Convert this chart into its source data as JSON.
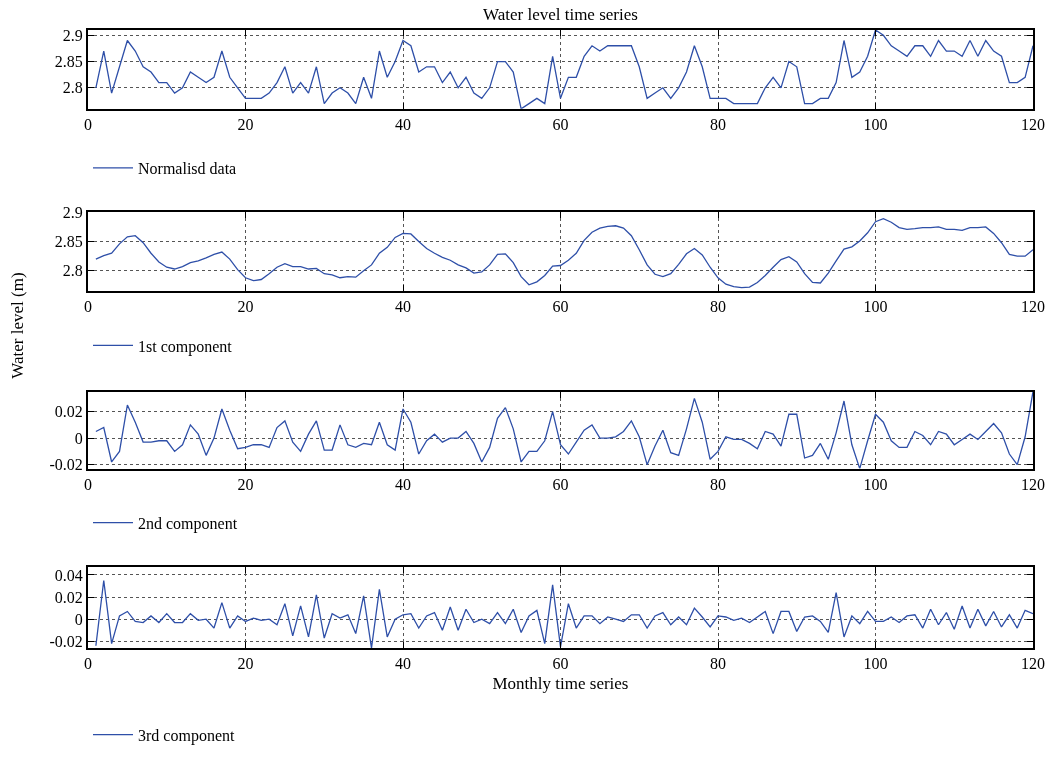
{
  "chart_data": [
    {
      "type": "line",
      "title": "Water level time series",
      "xlim": [
        0,
        120
      ],
      "xticks": [
        0,
        20,
        40,
        60,
        80,
        100,
        120
      ],
      "ylim": [
        2.76,
        2.91
      ],
      "yticks": [
        2.8,
        2.85,
        2.9
      ],
      "grid": true,
      "legend": "bottom",
      "line_style": "solid",
      "x": [
        1,
        2,
        3,
        4,
        5,
        6,
        7,
        8,
        9,
        10,
        11,
        12,
        13,
        14,
        15,
        16,
        17,
        18,
        19,
        20,
        21,
        22,
        23,
        24,
        25,
        26,
        27,
        28,
        29,
        30,
        31,
        32,
        33,
        34,
        35,
        36,
        37,
        38,
        39,
        40,
        41,
        42,
        43,
        44,
        45,
        46,
        47,
        48,
        49,
        50,
        51,
        52,
        53,
        54,
        55,
        56,
        57,
        58,
        59,
        60,
        61,
        62,
        63,
        64,
        65,
        66,
        67,
        68,
        69,
        70,
        71,
        72,
        73,
        74,
        75,
        76,
        77,
        78,
        79,
        80,
        81,
        82,
        83,
        84,
        85,
        86,
        87,
        88,
        89,
        90,
        91,
        92,
        93,
        94,
        95,
        96,
        97,
        98,
        99,
        100,
        101,
        102,
        103,
        104,
        105,
        106,
        107,
        108,
        109,
        110,
        111,
        112,
        113,
        114,
        115,
        116,
        117,
        118,
        119,
        120
      ],
      "series": [
        {
          "name": "Normalisd data",
          "color": "#2e4fa8",
          "values": [
            2.8,
            2.87,
            2.79,
            2.84,
            2.89,
            2.87,
            2.84,
            2.83,
            2.81,
            2.81,
            2.79,
            2.8,
            2.83,
            2.82,
            2.81,
            2.82,
            2.87,
            2.82,
            2.8,
            2.78,
            2.78,
            2.78,
            2.79,
            2.81,
            2.84,
            2.79,
            2.81,
            2.79,
            2.84,
            2.77,
            2.79,
            2.8,
            2.79,
            2.77,
            2.82,
            2.78,
            2.87,
            2.82,
            2.85,
            2.89,
            2.88,
            2.83,
            2.84,
            2.84,
            2.81,
            2.83,
            2.8,
            2.82,
            2.79,
            2.78,
            2.8,
            2.85,
            2.85,
            2.83,
            2.76,
            2.77,
            2.78,
            2.77,
            2.86,
            2.78,
            2.82,
            2.82,
            2.86,
            2.88,
            2.87,
            2.88,
            2.88,
            2.88,
            2.88,
            2.84,
            2.78,
            2.79,
            2.8,
            2.78,
            2.8,
            2.83,
            2.88,
            2.84,
            2.78,
            2.78,
            2.78,
            2.77,
            2.77,
            2.77,
            2.77,
            2.8,
            2.82,
            2.8,
            2.85,
            2.84,
            2.77,
            2.77,
            2.78,
            2.78,
            2.81,
            2.89,
            2.82,
            2.83,
            2.86,
            2.91,
            2.9,
            2.88,
            2.87,
            2.86,
            2.88,
            2.88,
            2.86,
            2.89,
            2.87,
            2.87,
            2.86,
            2.89,
            2.86,
            2.89,
            2.87,
            2.86,
            2.81,
            2.81,
            2.82,
            2.88
          ]
        }
      ]
    },
    {
      "type": "line",
      "ylabel": "Water level (m)",
      "xlim": [
        0,
        120
      ],
      "xticks": [
        0,
        20,
        40,
        60,
        80,
        100,
        120
      ],
      "ylim": [
        2.765,
        2.9
      ],
      "yticks": [
        2.8,
        2.85,
        2.9
      ],
      "grid": true,
      "legend": "bottom",
      "line_style": "solid",
      "x": [
        1,
        2,
        3,
        4,
        5,
        6,
        7,
        8,
        9,
        10,
        11,
        12,
        13,
        14,
        15,
        16,
        17,
        18,
        19,
        20,
        21,
        22,
        23,
        24,
        25,
        26,
        27,
        28,
        29,
        30,
        31,
        32,
        33,
        34,
        35,
        36,
        37,
        38,
        39,
        40,
        41,
        42,
        43,
        44,
        45,
        46,
        47,
        48,
        49,
        50,
        51,
        52,
        53,
        54,
        55,
        56,
        57,
        58,
        59,
        60,
        61,
        62,
        63,
        64,
        65,
        66,
        67,
        68,
        69,
        70,
        71,
        72,
        73,
        74,
        75,
        76,
        77,
        78,
        79,
        80,
        81,
        82,
        83,
        84,
        85,
        86,
        87,
        88,
        89,
        90,
        91,
        92,
        93,
        94,
        95,
        96,
        97,
        98,
        99,
        100,
        101,
        102,
        103,
        104,
        105,
        106,
        107,
        108,
        109,
        110,
        111,
        112,
        113,
        114,
        115,
        116,
        117,
        118,
        119,
        120
      ],
      "series": [
        {
          "name": "1st component",
          "color": "#2e4fa8",
          "values": [
            2.82,
            2.826,
            2.83,
            2.846,
            2.858,
            2.86,
            2.848,
            2.83,
            2.815,
            2.806,
            2.803,
            2.807,
            2.814,
            2.817,
            2.822,
            2.828,
            2.832,
            2.82,
            2.802,
            2.788,
            2.783,
            2.785,
            2.795,
            2.806,
            2.812,
            2.807,
            2.807,
            2.803,
            2.804,
            2.795,
            2.793,
            2.788,
            2.79,
            2.789,
            2.8,
            2.81,
            2.83,
            2.84,
            2.857,
            2.864,
            2.863,
            2.85,
            2.838,
            2.83,
            2.823,
            2.818,
            2.81,
            2.805,
            2.796,
            2.798,
            2.81,
            2.828,
            2.829,
            2.814,
            2.79,
            2.776,
            2.781,
            2.792,
            2.808,
            2.809,
            2.818,
            2.83,
            2.852,
            2.866,
            2.873,
            2.876,
            2.877,
            2.873,
            2.86,
            2.836,
            2.81,
            2.794,
            2.79,
            2.795,
            2.811,
            2.829,
            2.838,
            2.827,
            2.806,
            2.788,
            2.777,
            2.773,
            2.771,
            2.772,
            2.78,
            2.792,
            2.806,
            2.819,
            2.824,
            2.815,
            2.795,
            2.78,
            2.779,
            2.796,
            2.817,
            2.837,
            2.841,
            2.851,
            2.865,
            2.884,
            2.889,
            2.883,
            2.874,
            2.871,
            2.872,
            2.874,
            2.874,
            2.875,
            2.871,
            2.871,
            2.869,
            2.874,
            2.874,
            2.875,
            2.864,
            2.848,
            2.828,
            2.825,
            2.825,
            2.836
          ]
        }
      ]
    },
    {
      "type": "line",
      "xlim": [
        0,
        120
      ],
      "xticks": [
        0,
        20,
        40,
        60,
        80,
        100,
        120
      ],
      "ylim": [
        -0.023,
        0.035
      ],
      "yticks": [
        -0.02,
        0,
        0.02
      ],
      "grid": true,
      "legend": "bottom",
      "line_style": "solid",
      "x": [
        1,
        2,
        3,
        4,
        5,
        6,
        7,
        8,
        9,
        10,
        11,
        12,
        13,
        14,
        15,
        16,
        17,
        18,
        19,
        20,
        21,
        22,
        23,
        24,
        25,
        26,
        27,
        28,
        29,
        30,
        31,
        32,
        33,
        34,
        35,
        36,
        37,
        38,
        39,
        40,
        41,
        42,
        43,
        44,
        45,
        46,
        47,
        48,
        49,
        50,
        51,
        52,
        53,
        54,
        55,
        56,
        57,
        58,
        59,
        60,
        61,
        62,
        63,
        64,
        65,
        66,
        67,
        68,
        69,
        70,
        71,
        72,
        73,
        74,
        75,
        76,
        77,
        78,
        79,
        80,
        81,
        82,
        83,
        84,
        85,
        86,
        87,
        88,
        89,
        90,
        91,
        92,
        93,
        94,
        95,
        96,
        97,
        98,
        99,
        100,
        101,
        102,
        103,
        104,
        105,
        106,
        107,
        108,
        109,
        110,
        111,
        112,
        113,
        114,
        115,
        116,
        117,
        118,
        119,
        120
      ],
      "series": [
        {
          "name": "2nd component",
          "color": "#2e4fa8",
          "values": [
            0.005,
            0.008,
            -0.018,
            -0.01,
            0.025,
            0.012,
            -0.003,
            -0.003,
            -0.002,
            -0.002,
            -0.01,
            -0.005,
            0.01,
            0.003,
            -0.013,
            0.0,
            0.022,
            0.006,
            -0.008,
            -0.007,
            -0.005,
            -0.005,
            -0.007,
            0.008,
            0.013,
            -0.003,
            -0.01,
            0.003,
            0.013,
            -0.009,
            -0.009,
            0.01,
            -0.005,
            -0.007,
            -0.004,
            -0.005,
            0.012,
            -0.005,
            -0.009,
            0.022,
            0.012,
            -0.012,
            -0.002,
            0.003,
            -0.003,
            0.0,
            0.0,
            0.005,
            -0.004,
            -0.018,
            -0.007,
            0.015,
            0.023,
            0.007,
            -0.018,
            -0.01,
            -0.01,
            -0.002,
            0.02,
            -0.005,
            -0.012,
            -0.003,
            0.006,
            0.01,
            0.0,
            0.0,
            0.001,
            0.005,
            0.013,
            0.001,
            -0.02,
            -0.006,
            0.006,
            -0.011,
            -0.013,
            0.007,
            0.03,
            0.012,
            -0.016,
            -0.01,
            0.001,
            -0.001,
            -0.001,
            -0.004,
            -0.008,
            0.005,
            0.003,
            -0.006,
            0.018,
            0.018,
            -0.015,
            -0.013,
            -0.004,
            -0.016,
            0.004,
            0.028,
            -0.005,
            -0.023,
            -0.002,
            0.018,
            0.012,
            -0.002,
            -0.007,
            -0.007,
            0.005,
            0.002,
            -0.005,
            0.005,
            0.003,
            -0.005,
            -0.001,
            0.003,
            -0.001,
            0.005,
            0.011,
            0.004,
            -0.012,
            -0.02,
            0.001,
            0.035
          ]
        }
      ]
    },
    {
      "type": "line",
      "xlabel": "Monthly time series",
      "xlim": [
        0,
        120
      ],
      "xticks": [
        0,
        20,
        40,
        60,
        80,
        100,
        120
      ],
      "ylim": [
        -0.026,
        0.047
      ],
      "yticks": [
        -0.02,
        0,
        0.02,
        0.04
      ],
      "grid": true,
      "legend": "bottom",
      "line_style": "solid",
      "x": [
        1,
        2,
        3,
        4,
        5,
        6,
        7,
        8,
        9,
        10,
        11,
        12,
        13,
        14,
        15,
        16,
        17,
        18,
        19,
        20,
        21,
        22,
        23,
        24,
        25,
        26,
        27,
        28,
        29,
        30,
        31,
        32,
        33,
        34,
        35,
        36,
        37,
        38,
        39,
        40,
        41,
        42,
        43,
        44,
        45,
        46,
        47,
        48,
        49,
        50,
        51,
        52,
        53,
        54,
        55,
        56,
        57,
        58,
        59,
        60,
        61,
        62,
        63,
        64,
        65,
        66,
        67,
        68,
        69,
        70,
        71,
        72,
        73,
        74,
        75,
        76,
        77,
        78,
        79,
        80,
        81,
        82,
        83,
        84,
        85,
        86,
        87,
        88,
        89,
        90,
        91,
        92,
        93,
        94,
        95,
        96,
        97,
        98,
        99,
        100,
        101,
        102,
        103,
        104,
        105,
        106,
        107,
        108,
        109,
        110,
        111,
        112,
        113,
        114,
        115,
        116,
        117,
        118,
        119,
        120
      ],
      "series": [
        {
          "name": "3rd component",
          "color": "#2e4fa8",
          "values": [
            -0.024,
            0.035,
            -0.022,
            0.003,
            0.007,
            -0.002,
            -0.003,
            0.003,
            -0.003,
            0.005,
            -0.003,
            -0.003,
            0.005,
            -0.001,
            0.0,
            -0.008,
            0.015,
            -0.008,
            0.003,
            -0.002,
            0.001,
            -0.001,
            0.0,
            -0.005,
            0.014,
            -0.015,
            0.012,
            -0.016,
            0.022,
            -0.017,
            0.005,
            0.001,
            0.004,
            -0.013,
            0.021,
            -0.026,
            0.027,
            -0.016,
            0.0,
            0.004,
            0.005,
            -0.008,
            0.003,
            0.006,
            -0.01,
            0.011,
            -0.01,
            0.009,
            -0.003,
            0.0,
            -0.004,
            0.006,
            -0.004,
            0.009,
            -0.012,
            0.003,
            0.008,
            -0.022,
            0.031,
            -0.025,
            0.014,
            -0.008,
            0.003,
            0.003,
            -0.004,
            0.002,
            0.0,
            -0.002,
            0.004,
            0.004,
            -0.008,
            0.003,
            0.006,
            -0.005,
            0.002,
            -0.005,
            0.01,
            0.002,
            -0.007,
            0.003,
            0.002,
            -0.001,
            0.001,
            -0.003,
            0.002,
            0.007,
            -0.013,
            0.007,
            0.007,
            -0.011,
            0.002,
            0.003,
            -0.002,
            -0.012,
            0.024,
            -0.016,
            0.003,
            -0.004,
            0.007,
            -0.002,
            -0.002,
            0.002,
            -0.003,
            0.003,
            0.004,
            -0.008,
            0.009,
            -0.005,
            0.006,
            -0.009,
            0.012,
            -0.008,
            0.009,
            -0.006,
            0.007,
            -0.007,
            0.004,
            -0.008,
            0.008,
            0.005
          ]
        }
      ]
    }
  ]
}
